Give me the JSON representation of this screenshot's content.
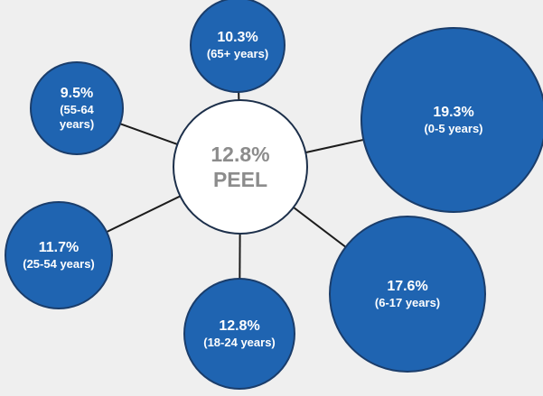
{
  "chart_data": {
    "type": "bubble",
    "center": {
      "value": 12.8,
      "value_label": "12.8%",
      "label": "PEEL"
    },
    "categories": [
      "(65+ years)",
      "(0-5 years)",
      "(6-17 years)",
      "(18-24 years)",
      "(25-54 years)",
      "(55-64 years)"
    ],
    "values": [
      10.3,
      19.3,
      17.6,
      12.8,
      11.7,
      9.5
    ],
    "value_labels": [
      "10.3%",
      "19.3%",
      "17.6%",
      "12.8%",
      "11.7%",
      "9.5%"
    ],
    "color": "#1f64b1"
  }
}
